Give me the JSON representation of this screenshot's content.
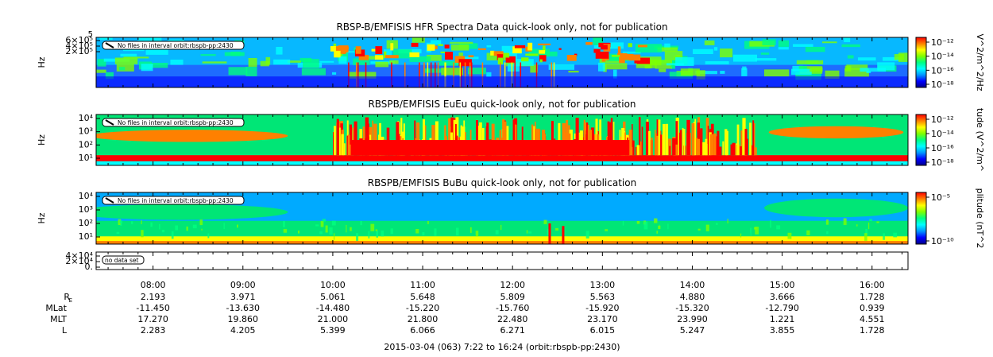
{
  "chart_data": {
    "type": "heatmap",
    "colors": {
      "background": "#00e676",
      "palette": [
        "#00008b",
        "#0000ff",
        "#0096ff",
        "#00ffff",
        "#00ff80",
        "#80ff00",
        "#ffff00",
        "#ff8000",
        "#ff0000"
      ]
    },
    "panels": [
      {
        "id": "hfr",
        "title": "RBSP-B/EMFISIS  HFR Spectra Data quick-look only, not for publication",
        "ylabel": "Hz",
        "yticks": [
          "6×10⁵",
          "4×10⁵",
          "2×10⁵"
        ],
        "ytop": "5",
        "colorbar_label": "V^2/m^2/Hz",
        "colorbar_ticks": [
          "10⁻¹²",
          "10⁻¹⁴",
          "10⁻¹⁶",
          "10⁻¹⁸"
        ],
        "note": "No files in interval orbit:rbspb-pp:2430",
        "base_color": "#1e90ff"
      },
      {
        "id": "eueu",
        "title": "RBSPB/EMFISIS  EuEu quick-look only, not for publication",
        "ylabel": "Hz",
        "yticks": [
          "10⁴",
          "10³",
          "10²",
          "10¹"
        ],
        "colorbar_label": "tude (V^2/m^",
        "colorbar_ticks": [
          "10⁻¹²",
          "10⁻¹⁴",
          "10⁻¹⁶",
          "10⁻¹⁸"
        ],
        "note": "No files in interval orbit:rbspb-pp:2430",
        "base_color": "#00e676"
      },
      {
        "id": "bubu",
        "title": "RBSPB/EMFISIS  BuBu quick-look only, not for publication",
        "ylabel": "Hz",
        "yticks": [
          "10⁴",
          "10³",
          "10²",
          "10¹"
        ],
        "colorbar_label": "plitude (nT^2",
        "colorbar_ticks": [
          "10⁻⁵",
          "10⁻¹⁰"
        ],
        "note": "No files in interval orbit:rbspb-pp:2430",
        "base_color": "#0096ff"
      },
      {
        "id": "empty",
        "title": "",
        "ylabel": "",
        "yticks": [
          "4×10⁴",
          "2×10⁴",
          "0."
        ],
        "note": "no data set"
      }
    ],
    "x_axis": {
      "start": "7:22",
      "end": "16:24",
      "tick_labels": [
        "08:00",
        "09:00",
        "10:00",
        "11:00",
        "12:00",
        "13:00",
        "14:00",
        "15:00",
        "16:00"
      ],
      "tick_hours": [
        8,
        9,
        10,
        11,
        12,
        13,
        14,
        15,
        16
      ],
      "range_hours": [
        7.3667,
        16.4
      ]
    },
    "ephemeris": [
      {
        "label": "R",
        "sub": "E",
        "values": [
          "2.193",
          "3.971",
          "5.061",
          "5.648",
          "5.809",
          "5.563",
          "4.880",
          "3.666",
          "1.728"
        ]
      },
      {
        "label": "MLat",
        "values": [
          "-11.450",
          "-13.630",
          "-14.480",
          "-15.220",
          "-15.760",
          "-15.920",
          "-15.320",
          "-12.790",
          "0.939"
        ]
      },
      {
        "label": "MLT",
        "values": [
          "17.270",
          "19.860",
          "21.000",
          "21.800",
          "22.480",
          "23.170",
          "23.990",
          "1.221",
          "4.551"
        ]
      },
      {
        "label": "L",
        "values": [
          "2.283",
          "4.205",
          "5.399",
          "6.066",
          "6.271",
          "6.015",
          "5.247",
          "3.855",
          "1.728"
        ]
      }
    ],
    "footer": "2015-03-04 (063) 7:22 to 16:24 (orbit:rbspb-pp:2430)"
  }
}
